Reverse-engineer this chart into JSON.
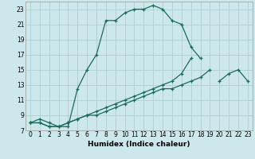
{
  "xlabel": "Humidex (Indice chaleur)",
  "bg_color": "#cce8ec",
  "line_color": "#1a6b5a",
  "grid_color": "#b0cdd2",
  "xlim": [
    -0.5,
    23.5
  ],
  "ylim": [
    7,
    24
  ],
  "xticks": [
    0,
    1,
    2,
    3,
    4,
    5,
    6,
    7,
    8,
    9,
    10,
    11,
    12,
    13,
    14,
    15,
    16,
    17,
    18,
    19,
    20,
    21,
    22,
    23
  ],
  "yticks": [
    7,
    9,
    11,
    13,
    15,
    17,
    19,
    21,
    23
  ],
  "series": [
    {
      "x": [
        0,
        1,
        2,
        3,
        4,
        5,
        6,
        7,
        8,
        9,
        10,
        11,
        12,
        13,
        14,
        15,
        16,
        17,
        18
      ],
      "y": [
        8.0,
        8.5,
        8.0,
        7.5,
        7.5,
        12.5,
        15.0,
        17.0,
        21.5,
        21.5,
        22.5,
        23.0,
        23.0,
        23.5,
        23.0,
        21.5,
        21.0,
        18.0,
        16.5
      ]
    },
    {
      "x": [
        0,
        1,
        2,
        3,
        4,
        5,
        6,
        7,
        8,
        9,
        10,
        11,
        12,
        13,
        14,
        15,
        16,
        17,
        18,
        19,
        20,
        21,
        22,
        23
      ],
      "y": [
        8.0,
        8.0,
        7.5,
        7.5,
        8.0,
        8.5,
        9.0,
        9.5,
        10.0,
        10.5,
        11.0,
        11.5,
        12.0,
        12.5,
        13.0,
        13.5,
        14.5,
        16.5,
        null,
        null,
        null,
        null,
        null,
        null
      ]
    },
    {
      "x": [
        0,
        1,
        2,
        3,
        4,
        5,
        6,
        7,
        8,
        9,
        10,
        11,
        12,
        13,
        14,
        15,
        16,
        17,
        18,
        19,
        20,
        21,
        22,
        23
      ],
      "y": [
        8.0,
        8.0,
        7.5,
        7.5,
        8.0,
        8.5,
        9.0,
        9.0,
        9.5,
        10.0,
        10.5,
        11.0,
        11.5,
        12.0,
        12.5,
        12.5,
        13.0,
        13.5,
        14.0,
        15.0,
        null,
        null,
        null,
        null
      ]
    },
    {
      "x": [
        20,
        21,
        22,
        23
      ],
      "y": [
        13.5,
        14.5,
        15.0,
        13.5
      ]
    }
  ]
}
